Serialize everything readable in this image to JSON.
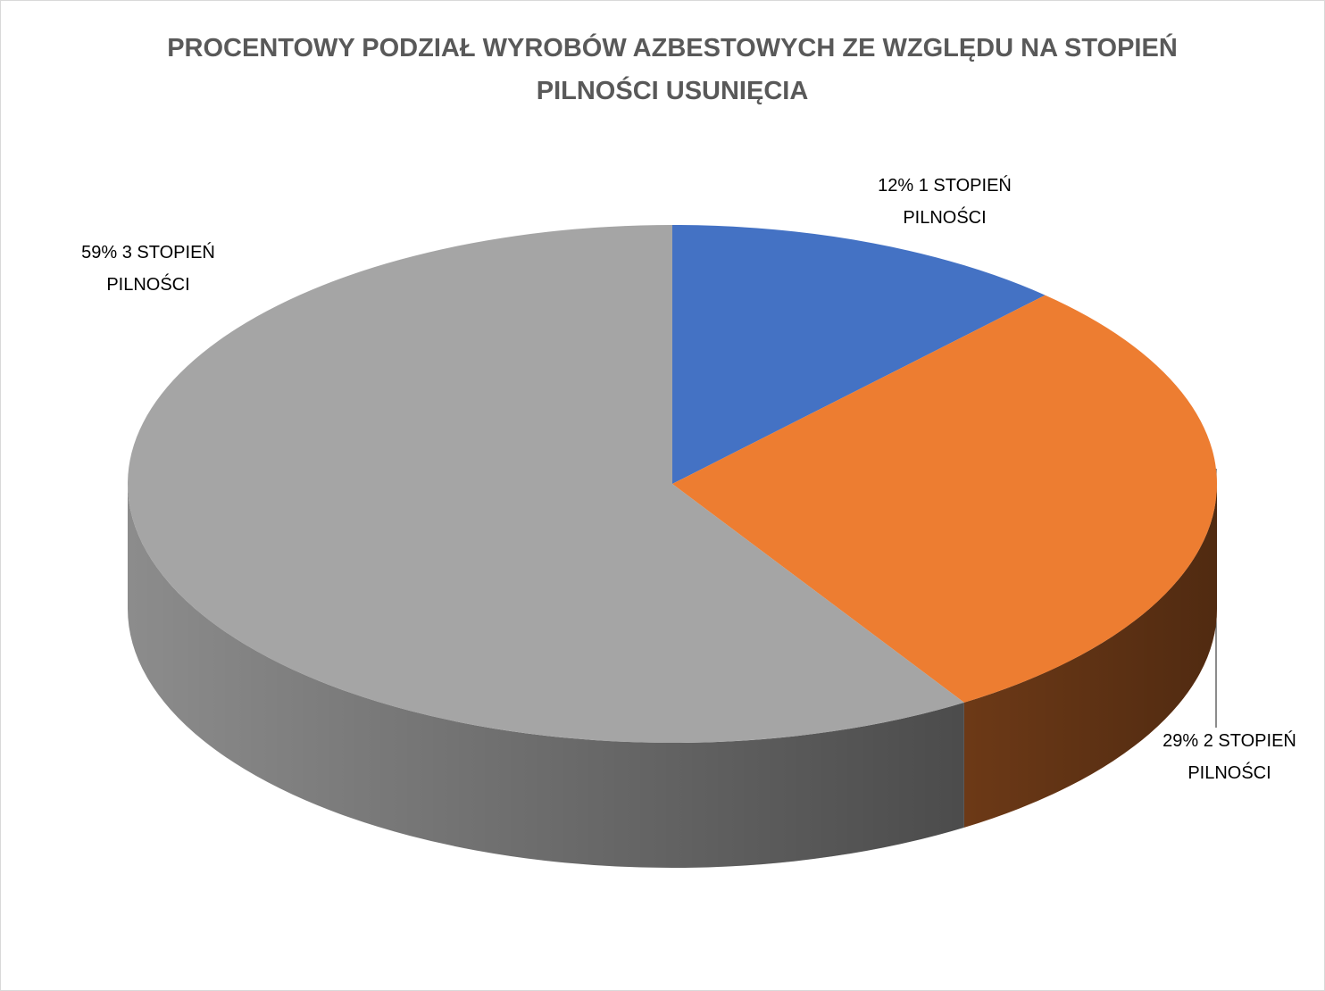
{
  "chart_data": {
    "type": "pie",
    "title": "PROCENTOWY PODZIAŁ WYROBÓW AZBESTOWYCH ZE WZGLĘDU NA STOPIEŃ PILNOŚCI USUNIĘCIA",
    "categories": [
      "1 STOPIEŃ PILNOŚCI",
      "2 STOPIEŃ PILNOŚCI",
      "3 STOPIEŃ PILNOŚCI"
    ],
    "values": [
      12,
      29,
      59
    ],
    "value_labels": [
      "12%",
      "29%",
      "59%"
    ],
    "colors": [
      "#4472c4",
      "#ed7d31",
      "#a5a5a5"
    ]
  }
}
